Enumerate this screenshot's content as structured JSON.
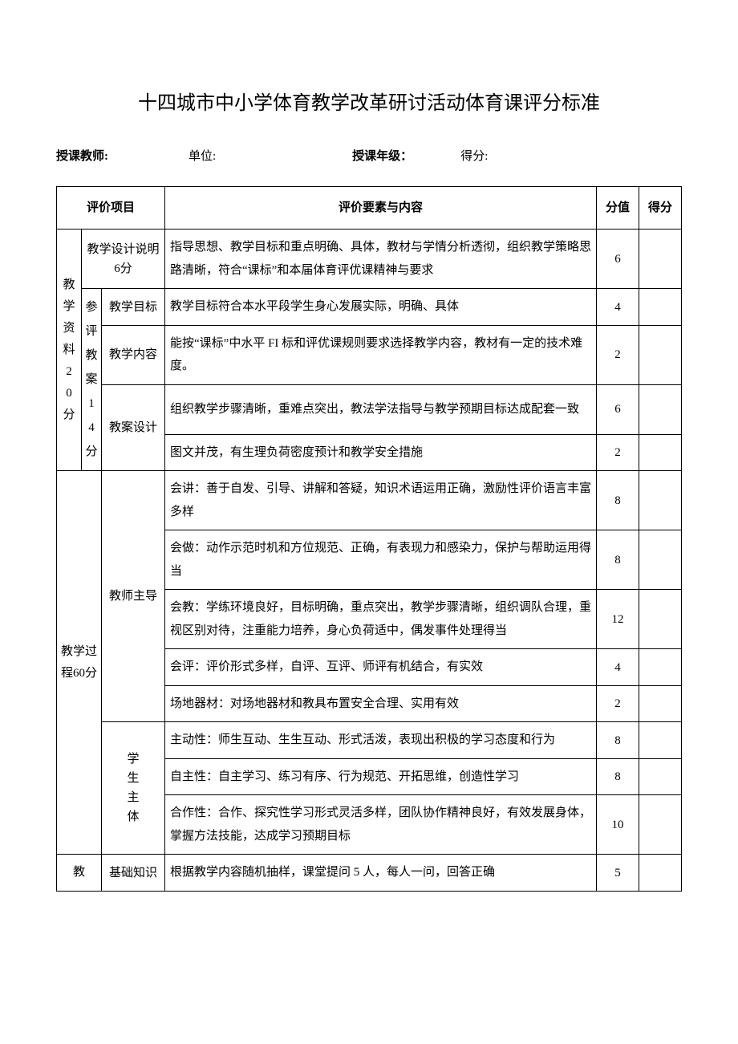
{
  "title": "十四城市中小学体育教学改革研讨活动体育课评分标准",
  "info": {
    "teacher_label": "授课教师:",
    "unit_label": "单位:",
    "grade_label": "授课年级：",
    "score_label": "得分:"
  },
  "headers": {
    "project": "评价项目",
    "content": "评价要素与内容",
    "score": "分值",
    "got": "得分"
  },
  "l1": {
    "materials": "教学资料20分",
    "process": "教学过程60分",
    "effect_row": "教"
  },
  "l2": {
    "design_note": "教学设计说明6分",
    "rubric": "参评教案14分",
    "teacher_lead": "教师主导",
    "student_body": "学生主体",
    "basic_knowledge": "基础知识"
  },
  "l3": {
    "goal": "教学目标",
    "content_sub": "教学内容",
    "plan_design": "教案设计"
  },
  "rows": [
    {
      "text": "指导思想、教学目标和重点明确、具体，教材与学情分析透彻，组织教学策略思路清晰，符合“课标”和本届体育评优课精神与要求",
      "score": 6
    },
    {
      "text": "教学目标符合本水平段学生身心发展实际，明确、具体",
      "score": 4
    },
    {
      "text": "能按“课标”中水平 FI 标和评优课规则要求选择教学内容，教材有一定的技术难度。",
      "score": 2
    },
    {
      "text": "组织教学步骤清晰，重难点突出，教法学法指导与教学预期目标达成配套一致",
      "score": 6
    },
    {
      "text": "图文并茂，有生理负荷密度预计和教学安全措施",
      "score": 2
    },
    {
      "text": "会讲：善于自发、引导、讲解和答疑，知识术语运用正确，激励性评价语言丰富多样",
      "score": 8
    },
    {
      "text": "会做：动作示范时机和方位规范、正确，有表现力和感染力，保护与帮助运用得当",
      "score": 8
    },
    {
      "text": "会教：学练环境良好，目标明确，重点突出，教学步骤清晰，组织调队合理，重视区别对待，注重能力培养，身心负荷适中，偶发事件处理得当",
      "score": 12
    },
    {
      "text": "会评：评价形式多样，自评、互评、师评有机结合，有实效",
      "score": 4
    },
    {
      "text": "场地器材：对场地器材和教具布置安全合理、实用有效",
      "score": 2
    },
    {
      "text": "主动性：师生互动、生生互动、形式活泼，表现出积极的学习态度和行为",
      "score": 8
    },
    {
      "text": "自主性：自主学习、练习有序、行为规范、开拓思维，创造性学习",
      "score": 8
    },
    {
      "text": "合作性：合作、探究性学习形式灵活多样，团队协作精神良好，有效发展身体，掌握方法技能，达成学习预期目标",
      "score": 10
    },
    {
      "text": "根据教学内容随机抽样，课堂提问 5 人，每人一问，回答正确",
      "score": 5
    }
  ]
}
